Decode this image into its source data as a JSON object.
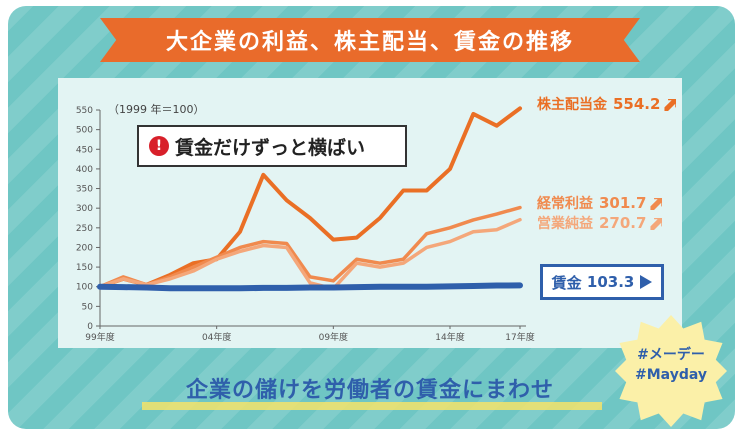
{
  "title": "大企業の利益、株主配当、賃金の推移",
  "note": "賃金だけずっと横ばい",
  "slogan": "企業の儲けを労働者の賃金にまわせ",
  "hashtags": [
    "#メーデー",
    "#Mayday"
  ],
  "colors": {
    "background": "#6fc6c4",
    "banner": "#e96b2b",
    "dividend": "#ea6f25",
    "ordinary_profit": "#f08a4e",
    "operating_profit": "#f4a77a",
    "wages": "#2f5fab"
  },
  "chart_data": {
    "type": "line",
    "unit_note": "（1999 年＝100）",
    "x": [
      1999,
      2000,
      2001,
      2002,
      2003,
      2004,
      2005,
      2006,
      2007,
      2008,
      2009,
      2010,
      2011,
      2012,
      2013,
      2014,
      2015,
      2016,
      2017
    ],
    "x_tick_labels": [
      {
        "x": 1999,
        "label": "99年度"
      },
      {
        "x": 2004,
        "label": "04年度"
      },
      {
        "x": 2009,
        "label": "09年度"
      },
      {
        "x": 2014,
        "label": "14年度"
      },
      {
        "x": 2017,
        "label": "17年度"
      }
    ],
    "ylim": [
      0,
      550
    ],
    "yticks": [
      0,
      50,
      100,
      150,
      200,
      250,
      300,
      350,
      400,
      450,
      500,
      550
    ],
    "grid": false,
    "series": [
      {
        "name": "株主配当金",
        "end_value": "554.2",
        "color": "#ea6f25",
        "values": [
          100,
          120,
          105,
          130,
          160,
          170,
          240,
          385,
          320,
          275,
          220,
          225,
          275,
          345,
          345,
          400,
          540,
          510,
          554.2
        ]
      },
      {
        "name": "経常利益",
        "end_value": "301.7",
        "color": "#f08a4e",
        "values": [
          100,
          125,
          105,
          125,
          150,
          175,
          200,
          215,
          210,
          125,
          115,
          170,
          160,
          170,
          235,
          250,
          270,
          285,
          301.7
        ]
      },
      {
        "name": "営業純益",
        "end_value": "270.7",
        "color": "#f4a77a",
        "values": [
          100,
          120,
          105,
          120,
          140,
          170,
          190,
          205,
          200,
          110,
          95,
          160,
          150,
          160,
          200,
          215,
          240,
          245,
          270.7
        ]
      },
      {
        "name": "賃金",
        "end_value": "103.3",
        "color": "#2f5fab",
        "values": [
          100,
          99,
          98,
          96,
          96,
          96,
          96,
          97,
          97,
          98,
          98,
          99,
          100,
          100,
          100,
          101,
          102,
          103,
          103.3
        ]
      }
    ]
  }
}
